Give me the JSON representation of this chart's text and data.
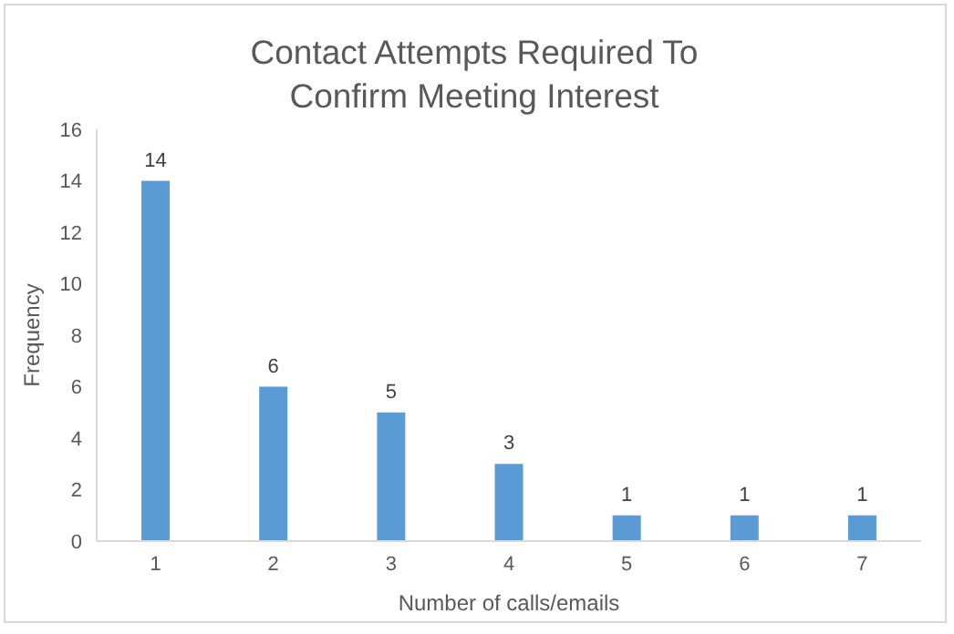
{
  "chart_data": {
    "type": "bar",
    "title": "Contact Attempts Required To Confirm Meeting Interest",
    "xlabel": "Number of calls/emails",
    "ylabel": "Frequency",
    "categories": [
      "1",
      "2",
      "3",
      "4",
      "5",
      "6",
      "7"
    ],
    "values": [
      14,
      6,
      5,
      3,
      1,
      1,
      1
    ],
    "color": "#5b9bd5",
    "ylim": [
      0,
      16
    ],
    "yticks": [
      0,
      2,
      4,
      6,
      8,
      10,
      12,
      14,
      16
    ],
    "data_labels": true
  }
}
